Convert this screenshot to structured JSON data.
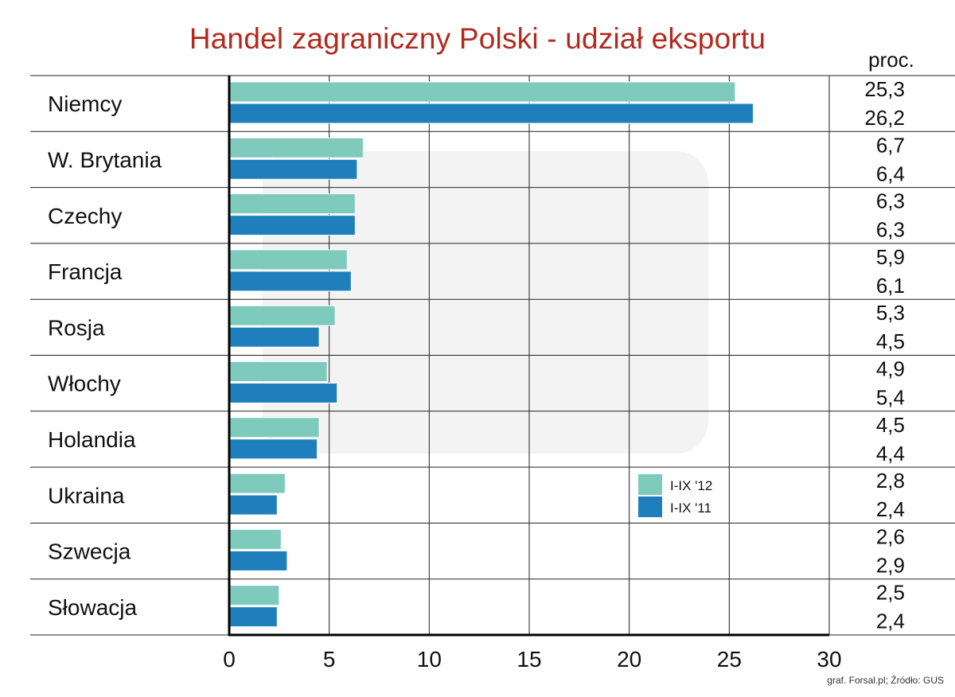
{
  "title": "Handel zagraniczny Polski  - udział eksportu",
  "unit_label": "proc.",
  "source": "graf. Forsal.pl; Źródło: GUS",
  "colors": {
    "series_2012": "#7ecabc",
    "series_2011": "#1f7fbd",
    "title": "#b22a1e"
  },
  "chart_data": {
    "type": "bar",
    "orientation": "horizontal",
    "categories": [
      "Niemcy",
      "W. Brytania",
      "Czechy",
      "Francja",
      "Rosja",
      "Włochy",
      "Holandia",
      "Ukraina",
      "Szwecja",
      "Słowacja"
    ],
    "series": [
      {
        "name": "I-IX '12",
        "values": [
          25.3,
          6.7,
          6.3,
          5.9,
          5.3,
          4.9,
          4.5,
          2.8,
          2.6,
          2.5
        ],
        "labels": [
          "25,3",
          "6,7",
          "6,3",
          "5,9",
          "5,3",
          "4,9",
          "4,5",
          "2,8",
          "2,6",
          "2,5"
        ]
      },
      {
        "name": "I-IX '11",
        "values": [
          26.2,
          6.4,
          6.3,
          6.1,
          4.5,
          5.4,
          4.4,
          2.4,
          2.9,
          2.4
        ],
        "labels": [
          "26,2",
          "6,4",
          "6,3",
          "6,1",
          "4,5",
          "5,4",
          "4,4",
          "2,4",
          "2,9",
          "2,4"
        ]
      }
    ],
    "x_ticks": [
      0,
      5,
      10,
      15,
      20,
      25,
      30
    ],
    "xlim": [
      0,
      30
    ],
    "grid": true,
    "legend_position": "right-lower"
  }
}
